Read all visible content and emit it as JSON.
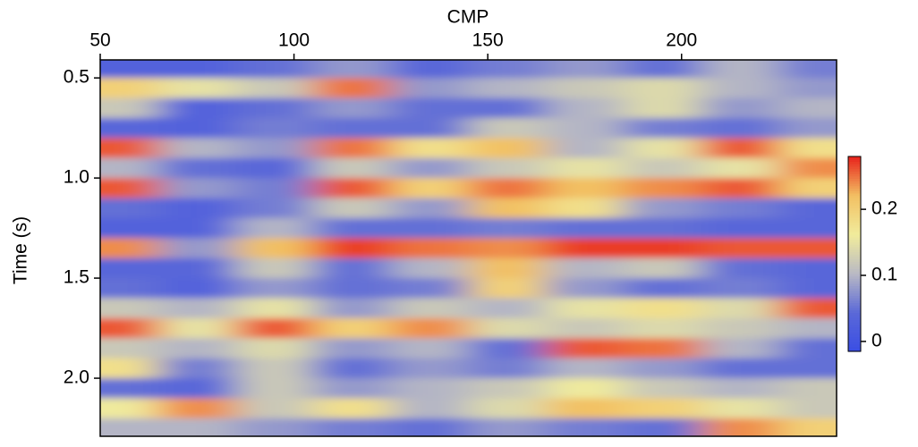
{
  "chart_data": {
    "type": "heatmap",
    "title": "CMP",
    "ylabel": "Time (s)",
    "x": [
      55,
      75,
      95,
      115,
      135,
      155,
      175,
      195,
      215,
      235
    ],
    "y": [
      0.45,
      0.55,
      0.65,
      0.75,
      0.85,
      0.95,
      1.05,
      1.15,
      1.25,
      1.35,
      1.45,
      1.55,
      1.65,
      1.75,
      1.85,
      1.95,
      2.05,
      2.15,
      2.25
    ],
    "z": [
      [
        0.03,
        0.03,
        0.05,
        0.08,
        0.04,
        0.06,
        0.08,
        0.05,
        0.1,
        0.06
      ],
      [
        0.2,
        0.15,
        0.12,
        0.25,
        0.08,
        0.1,
        0.12,
        0.14,
        0.1,
        0.08
      ],
      [
        0.12,
        0.03,
        0.05,
        0.08,
        0.05,
        0.05,
        0.1,
        0.14,
        0.08,
        0.1
      ],
      [
        0.04,
        0.03,
        0.06,
        0.05,
        0.05,
        0.12,
        0.1,
        0.06,
        0.05,
        0.08
      ],
      [
        0.26,
        0.1,
        0.08,
        0.25,
        0.18,
        0.22,
        0.1,
        0.15,
        0.26,
        0.18
      ],
      [
        0.1,
        0.05,
        0.04,
        0.12,
        0.08,
        0.12,
        0.15,
        0.12,
        0.15,
        0.24
      ],
      [
        0.26,
        0.08,
        0.06,
        0.26,
        0.2,
        0.25,
        0.22,
        0.24,
        0.26,
        0.2
      ],
      [
        0.05,
        0.03,
        0.06,
        0.12,
        0.08,
        0.22,
        0.18,
        0.08,
        0.06,
        0.04
      ],
      [
        0.03,
        0.03,
        0.1,
        0.05,
        0.05,
        0.06,
        0.05,
        0.05,
        0.04,
        0.04
      ],
      [
        0.24,
        0.08,
        0.22,
        0.27,
        0.25,
        0.24,
        0.27,
        0.27,
        0.26,
        0.26
      ],
      [
        0.04,
        0.04,
        0.12,
        0.05,
        0.1,
        0.22,
        0.1,
        0.12,
        0.05,
        0.04
      ],
      [
        0.05,
        0.03,
        0.08,
        0.05,
        0.06,
        0.2,
        0.08,
        0.05,
        0.06,
        0.04
      ],
      [
        0.12,
        0.1,
        0.15,
        0.08,
        0.12,
        0.1,
        0.15,
        0.18,
        0.14,
        0.26
      ],
      [
        0.26,
        0.15,
        0.26,
        0.2,
        0.24,
        0.14,
        0.12,
        0.14,
        0.12,
        0.1
      ],
      [
        0.12,
        0.1,
        0.14,
        0.08,
        0.1,
        0.05,
        0.26,
        0.25,
        0.1,
        0.05
      ],
      [
        0.18,
        0.06,
        0.12,
        0.05,
        0.08,
        0.06,
        0.1,
        0.08,
        0.05,
        0.05
      ],
      [
        0.05,
        0.04,
        0.12,
        0.08,
        0.1,
        0.12,
        0.16,
        0.12,
        0.1,
        0.12
      ],
      [
        0.16,
        0.24,
        0.12,
        0.18,
        0.1,
        0.14,
        0.22,
        0.2,
        0.15,
        0.12
      ],
      [
        0.1,
        0.1,
        0.08,
        0.06,
        0.05,
        0.08,
        0.06,
        0.05,
        0.24,
        0.2
      ]
    ],
    "xlim": [
      50,
      240
    ],
    "xticks": [
      50,
      100,
      150,
      200
    ],
    "x_axis_position": "top",
    "ylim": [
      0.41,
      2.29
    ],
    "y_inverted": true,
    "yticks": [
      0.5,
      {
        "value": 1,
        "label": "1.0"
      },
      1.5,
      {
        "value": 2,
        "label": "2.0"
      }
    ],
    "zlim": [
      -0.015,
      0.28
    ],
    "zticks": [
      0,
      0.1,
      0.2
    ],
    "colormap": [
      "#3a4ee4",
      "#5a68d8",
      "#b9b9c4",
      "#f1ec9c",
      "#f2c063",
      "#e8231c"
    ]
  }
}
